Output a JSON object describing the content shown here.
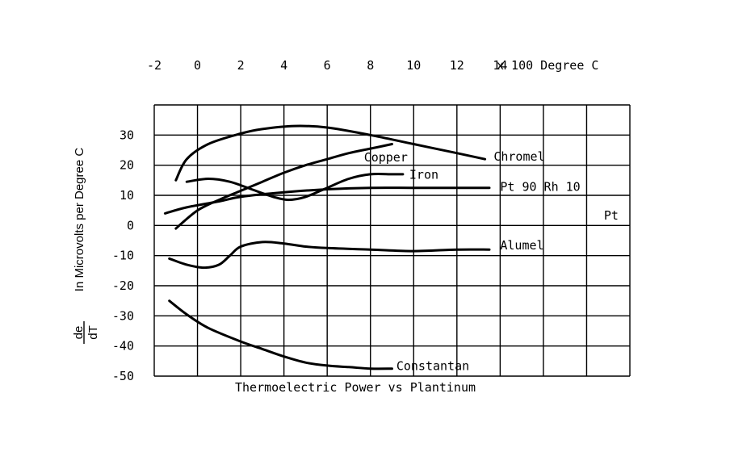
{
  "chart_data": {
    "type": "line",
    "title": "Thermoelectric Power vs Plantinum",
    "xlabel": "x 100 Degree C",
    "ylabel": "In Microvolts per Degree C",
    "ylabel_fraction": {
      "numerator": "de",
      "denominator": "dT"
    },
    "x_tick_labels": [
      "-2",
      "0",
      "2",
      "4",
      "6",
      "8",
      "10",
      "12",
      "14"
    ],
    "y_tick_labels": [
      "30",
      "20",
      "10",
      "0",
      "-10",
      "-20",
      "-30",
      "-40",
      "-50"
    ],
    "x_axis_position": "top",
    "xlim": [
      -2,
      20
    ],
    "ylim": [
      -50,
      40
    ],
    "grid": true,
    "x_grid": [
      -2,
      0,
      2,
      4,
      6,
      8,
      10,
      12,
      14,
      16,
      18,
      20
    ],
    "y_grid": [
      -50,
      -40,
      -30,
      -20,
      -10,
      0,
      10,
      20,
      30,
      40
    ],
    "series": [
      {
        "name": "Chromel",
        "points": [
          [
            -1,
            15
          ],
          [
            -0.5,
            22
          ],
          [
            0.5,
            27
          ],
          [
            2,
            30.5
          ],
          [
            3,
            32
          ],
          [
            4.5,
            33
          ],
          [
            6,
            32.5
          ],
          [
            8,
            30
          ],
          [
            10,
            27
          ],
          [
            12,
            24
          ],
          [
            13.3,
            22
          ]
        ]
      },
      {
        "name": "Copper",
        "points": [
          [
            -1,
            -1
          ],
          [
            0,
            5
          ],
          [
            1,
            8.5
          ],
          [
            2,
            11.5
          ],
          [
            3,
            14.5
          ],
          [
            4,
            17.5
          ],
          [
            5,
            20
          ],
          [
            6,
            22
          ],
          [
            7,
            24
          ],
          [
            8,
            25.5
          ],
          [
            9,
            27
          ]
        ]
      },
      {
        "name": "Iron",
        "points": [
          [
            -0.5,
            14.5
          ],
          [
            0.5,
            15.5
          ],
          [
            1.5,
            14.5
          ],
          [
            2.5,
            12
          ],
          [
            3.5,
            9.5
          ],
          [
            4.2,
            8.5
          ],
          [
            5,
            9.5
          ],
          [
            6,
            12.5
          ],
          [
            7,
            15.5
          ],
          [
            8,
            17
          ],
          [
            9,
            17
          ],
          [
            9.5,
            17
          ]
        ]
      },
      {
        "name": "Pt 90 Rh 10",
        "points": [
          [
            -1.5,
            4
          ],
          [
            -0.5,
            6
          ],
          [
            1,
            8
          ],
          [
            2,
            9.5
          ],
          [
            4,
            11
          ],
          [
            6,
            12
          ],
          [
            8,
            12.5
          ],
          [
            10,
            12.5
          ],
          [
            12,
            12.5
          ],
          [
            13.5,
            12.5
          ]
        ]
      },
      {
        "name": "Pt",
        "points": []
      },
      {
        "name": "Alumel",
        "points": [
          [
            -1.3,
            -11
          ],
          [
            -0.5,
            -13
          ],
          [
            0.3,
            -14
          ],
          [
            1,
            -13
          ],
          [
            1.5,
            -10
          ],
          [
            2,
            -7
          ],
          [
            3,
            -5.5
          ],
          [
            4,
            -6
          ],
          [
            5,
            -7
          ],
          [
            6,
            -7.5
          ],
          [
            8,
            -8
          ],
          [
            10,
            -8.5
          ],
          [
            12,
            -8
          ],
          [
            13.5,
            -8
          ]
        ]
      },
      {
        "name": "Constantan",
        "points": [
          [
            -1.3,
            -25
          ],
          [
            -0.5,
            -29.5
          ],
          [
            0.5,
            -34
          ],
          [
            2,
            -38.5
          ],
          [
            3,
            -41
          ],
          [
            4,
            -43.5
          ],
          [
            5,
            -45.5
          ],
          [
            6,
            -46.5
          ],
          [
            7,
            -47
          ],
          [
            8,
            -47.5
          ],
          [
            9,
            -47.5
          ]
        ]
      }
    ],
    "series_labels": [
      {
        "text": "Chromel",
        "x": 13.7,
        "y": 21.5
      },
      {
        "text": "Copper",
        "x": 7.7,
        "y": 21.3
      },
      {
        "text": "Iron",
        "x": 9.8,
        "y": 15.5
      },
      {
        "text": "Pt 90 Rh 10",
        "x": 14.0,
        "y": 11.5
      },
      {
        "text": "Pt",
        "x": 18.8,
        "y": 2.0
      },
      {
        "text": "Alumel",
        "x": 14.0,
        "y": -8.0
      },
      {
        "text": "Constantan",
        "x": 9.2,
        "y": -48.0
      }
    ]
  }
}
